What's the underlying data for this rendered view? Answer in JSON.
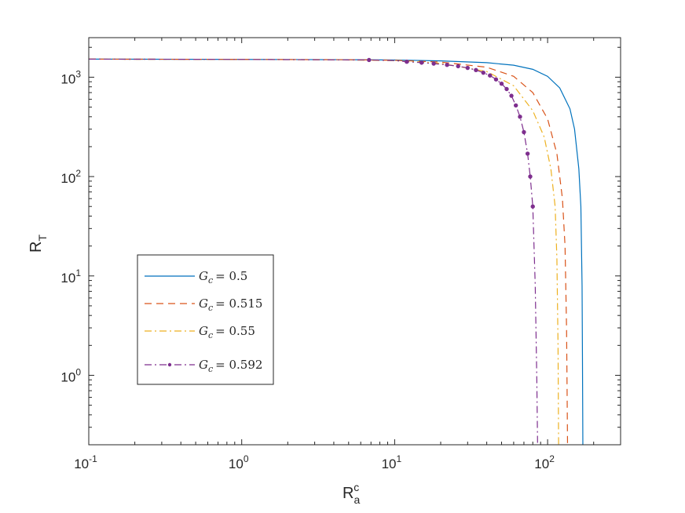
{
  "chart_data": {
    "type": "line",
    "xscale": "log",
    "yscale": "log",
    "xlim": [
      0.1,
      300
    ],
    "ylim": [
      0.2,
      2500
    ],
    "xlabel": {
      "main": "R",
      "sub": "a",
      "sup": "c"
    },
    "ylabel": {
      "main": "R",
      "sub": "T"
    },
    "xticks": [
      {
        "base": "10",
        "exp": "-1",
        "value": 0.1
      },
      {
        "base": "10",
        "exp": "0",
        "value": 1
      },
      {
        "base": "10",
        "exp": "1",
        "value": 10
      },
      {
        "base": "10",
        "exp": "2",
        "value": 100
      }
    ],
    "yticks": [
      {
        "base": "10",
        "exp": "0",
        "value": 1
      },
      {
        "base": "10",
        "exp": "1",
        "value": 10
      },
      {
        "base": "10",
        "exp": "2",
        "value": 100
      },
      {
        "base": "10",
        "exp": "3",
        "value": 1000
      }
    ],
    "grid": false,
    "legend_position": "lower-left",
    "series": [
      {
        "name": "G_c = 0.5",
        "legend": {
          "symbol": "G",
          "sub": "c",
          "eq": "= 0.5"
        },
        "color": "#0072BD",
        "style": "solid",
        "marker": "none",
        "x": [
          0.1,
          1,
          5,
          10,
          20,
          40,
          60,
          80,
          100,
          120,
          140,
          150,
          160,
          165,
          168,
          169,
          170
        ],
        "y": [
          1520,
          1510,
          1500,
          1490,
          1460,
          1400,
          1320,
          1200,
          1020,
          780,
          480,
          300,
          120,
          50,
          8,
          1.5,
          0.2
        ]
      },
      {
        "name": "G_c = 0.515",
        "legend": {
          "symbol": "G",
          "sub": "c",
          "eq": "= 0.515"
        },
        "color": "#D95319",
        "style": "dash",
        "marker": "none",
        "x": [
          0.1,
          1,
          5,
          10,
          20,
          40,
          60,
          80,
          100,
          115,
          125,
          130,
          133,
          134,
          135
        ],
        "y": [
          1520,
          1510,
          1500,
          1480,
          1420,
          1260,
          1020,
          700,
          380,
          170,
          60,
          20,
          3,
          0.8,
          0.2
        ]
      },
      {
        "name": "G_c = 0.55",
        "legend": {
          "symbol": "G",
          "sub": "c",
          "eq": "= 0.55"
        },
        "color": "#EDB120",
        "style": "dashdot",
        "marker": "none",
        "x": [
          0.1,
          1,
          5,
          10,
          20,
          40,
          60,
          80,
          95,
          105,
          112,
          115,
          117,
          118
        ],
        "y": [
          1520,
          1510,
          1490,
          1470,
          1380,
          1140,
          820,
          460,
          250,
          120,
          50,
          15,
          2,
          0.2
        ]
      },
      {
        "name": "G_c = 0.592",
        "legend": {
          "symbol": "G",
          "sub": "c",
          "eq": "= 0.592"
        },
        "color": "#7E2F8E",
        "style": "dashdot",
        "marker": "dot",
        "x": [
          0.1,
          1,
          6.8,
          10,
          12,
          15,
          18,
          22,
          26,
          30,
          34,
          38,
          42,
          46,
          50,
          54,
          58,
          62,
          66,
          70,
          74,
          77,
          80,
          83,
          85,
          86
        ],
        "y": [
          1520,
          1510,
          1490,
          1470,
          1430,
          1400,
          1370,
          1330,
          1290,
          1240,
          1180,
          1110,
          1040,
          950,
          860,
          760,
          650,
          520,
          400,
          280,
          170,
          100,
          50,
          8,
          0.9,
          0.2
        ],
        "marker_x": [
          6.8,
          12,
          15,
          18,
          22,
          26,
          30,
          34,
          38,
          42,
          46,
          50,
          54,
          58,
          62,
          66,
          70,
          74,
          77,
          80
        ],
        "marker_y": [
          1490,
          1430,
          1400,
          1370,
          1330,
          1290,
          1240,
          1180,
          1110,
          1040,
          950,
          860,
          760,
          650,
          520,
          400,
          280,
          170,
          100,
          50
        ]
      }
    ]
  }
}
